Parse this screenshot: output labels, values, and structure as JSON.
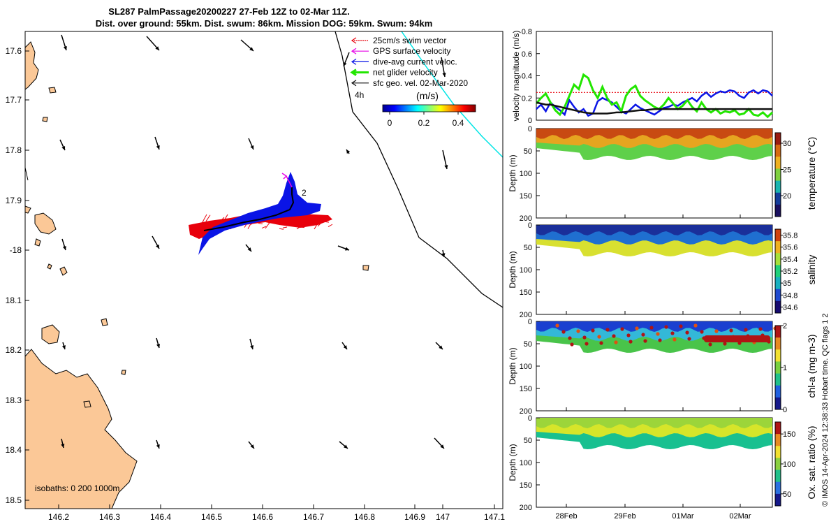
{
  "title": {
    "line1": "SL287 PalmPassage20200227 27-Feb 12Z to 02-Mar 11Z.",
    "line2": "Dist. over ground: 55km. Dist. swum: 86km. Mission DOG: 59km. Swum: 94km"
  },
  "colors": {
    "land": "#fbc897",
    "swim": "#e8000b",
    "gps": "#e600e6",
    "diveavg": "#0a14e6",
    "net": "#22e600",
    "sfcgeo": "#111111",
    "cyan": "#00e5e5"
  },
  "map": {
    "lon_ticks": [
      "146.2",
      "146.3",
      "146.4",
      "146.5",
      "146.6",
      "146.7",
      "146.8",
      "146.9",
      "147",
      "147.1"
    ],
    "lat_ticks": [
      "17.6",
      "17.7",
      "17.8",
      "17.9",
      "-18",
      "18.1",
      "18.2",
      "18.3",
      "18.4",
      "18.5"
    ],
    "lon_range": [
      146.11,
      147.12
    ],
    "lat_range": [
      17.57,
      18.52
    ],
    "isobaths_label": "isobaths: 0   200  1000m",
    "marker_2": "2",
    "marker_4h": "4h",
    "legend": [
      {
        "label": "25cm/s swim vector",
        "color": "#e8000b"
      },
      {
        "label": "GPS surface velocity",
        "color": "#e600e6"
      },
      {
        "label": "dive-avg current veloc.",
        "color": "#0a14e6"
      },
      {
        "label": "net glider velocity",
        "color": "#22e600"
      },
      {
        "label": "sfc geo. vel. 02-Mar-2020",
        "color": "#111111"
      }
    ],
    "colorbar": {
      "unit": "(m/s)",
      "ticks": [
        "0",
        "0.2",
        "0.4"
      ]
    }
  },
  "chart_data": [
    {
      "type": "line",
      "ylabel": "velocity magnitude (m/s)",
      "ylim": [
        0,
        0.8
      ],
      "yticks": [
        "0",
        "0.2",
        "0.4",
        "0.6",
        "0.8"
      ],
      "x": [
        0,
        0.02,
        0.04,
        0.06,
        0.08,
        0.1,
        0.12,
        0.14,
        0.16,
        0.18,
        0.2,
        0.22,
        0.24,
        0.26,
        0.28,
        0.3,
        0.32,
        0.34,
        0.36,
        0.38,
        0.4,
        0.42,
        0.44,
        0.46,
        0.48,
        0.5,
        0.52,
        0.54,
        0.56,
        0.58,
        0.6,
        0.62,
        0.64,
        0.66,
        0.68,
        0.7,
        0.72,
        0.74,
        0.76,
        0.78,
        0.8,
        0.82,
        0.84,
        0.86,
        0.88,
        0.9,
        0.92,
        0.94,
        0.96,
        0.98,
        1.0
      ],
      "series": [
        {
          "name": "swim",
          "color": "#e8000b",
          "values": [
            0.25,
            0.25,
            0.25,
            0.25,
            0.25,
            0.25,
            0.25,
            0.25,
            0.25,
            0.25,
            0.25,
            0.25,
            0.25,
            0.25,
            0.25,
            0.25,
            0.25,
            0.25,
            0.25,
            0.25,
            0.25,
            0.25,
            0.25,
            0.25,
            0.25,
            0.25,
            0.25,
            0.25,
            0.25,
            0.25,
            0.25,
            0.25,
            0.25,
            0.25,
            0.25,
            0.25,
            0.25,
            0.25,
            0.25,
            0.25,
            0.25,
            0.25,
            0.25,
            0.25,
            0.25,
            0.25,
            0.25,
            0.25,
            0.25,
            0.25,
            0.25
          ]
        },
        {
          "name": "dive-avg",
          "color": "#0a14e6",
          "values": [
            0.1,
            0.14,
            0.08,
            0.16,
            0.12,
            0.09,
            0.05,
            0.18,
            0.12,
            0.07,
            0.1,
            0.04,
            0.06,
            0.17,
            0.2,
            0.18,
            0.16,
            0.12,
            0.08,
            0.06,
            0.1,
            0.14,
            0.11,
            0.09,
            0.07,
            0.05,
            0.08,
            0.11,
            0.12,
            0.14,
            0.13,
            0.16,
            0.18,
            0.2,
            0.17,
            0.22,
            0.25,
            0.21,
            0.24,
            0.26,
            0.25,
            0.27,
            0.26,
            0.22,
            0.2,
            0.25,
            0.27,
            0.24,
            0.27,
            0.26,
            0.22
          ]
        },
        {
          "name": "net",
          "color": "#22e600",
          "values": [
            0.15,
            0.2,
            0.24,
            0.16,
            0.09,
            0.05,
            0.12,
            0.22,
            0.32,
            0.28,
            0.41,
            0.38,
            0.27,
            0.2,
            0.3,
            0.2,
            0.14,
            0.16,
            0.08,
            0.22,
            0.28,
            0.31,
            0.22,
            0.18,
            0.15,
            0.12,
            0.1,
            0.14,
            0.2,
            0.15,
            0.1,
            0.13,
            0.18,
            0.12,
            0.08,
            0.16,
            0.1,
            0.07,
            0.1,
            0.06,
            0.08,
            0.07,
            0.09,
            0.05,
            0.06,
            0.1,
            0.05,
            0.04,
            0.07,
            0.03,
            0.07
          ]
        },
        {
          "name": "sfc",
          "color": "#111111",
          "values": [
            0.16,
            0.15,
            0.14,
            0.14,
            0.13,
            0.12,
            0.11,
            0.1,
            0.09,
            0.08,
            0.07,
            0.065,
            0.06,
            0.06,
            0.06,
            0.06,
            0.065,
            0.07,
            0.07,
            0.075,
            0.08,
            0.085,
            0.09,
            0.09,
            0.095,
            0.1,
            0.1,
            0.1,
            0.1,
            0.1,
            0.1,
            0.1,
            0.1,
            0.1,
            0.1,
            0.1,
            0.1,
            0.1,
            0.1,
            0.1,
            0.1,
            0.1,
            0.1,
            0.1,
            0.1,
            0.1,
            0.1,
            0.1,
            0.1,
            0.1,
            0.1
          ]
        }
      ]
    },
    {
      "type": "heatmap",
      "ylabel": "Depth (m)",
      "cblabel": "temperature (°C)",
      "cbticks": [
        "20",
        "25",
        "30"
      ],
      "clim": [
        16,
        32
      ],
      "yticks": [
        "0",
        "50",
        "100",
        "150",
        "200"
      ],
      "ylim": [
        0,
        200
      ],
      "xticks": [
        "28Feb",
        "29Feb",
        "01Mar",
        "02Mar"
      ],
      "description_values": {
        "surface": 29.5,
        "bottom": 24.5
      }
    },
    {
      "type": "heatmap",
      "ylabel": "Depth (m)",
      "cblabel": "salinity",
      "cbticks": [
        "34.6",
        "34.8",
        "35",
        "35.2",
        "35.4",
        "35.6",
        "35.8"
      ],
      "clim": [
        34.5,
        35.9
      ],
      "yticks": [
        "0",
        "50",
        "100",
        "150",
        "200"
      ],
      "ylim": [
        0,
        200
      ]
    },
    {
      "type": "heatmap",
      "ylabel": "Depth (m)",
      "cblabel": "chl-a (mg m-3)",
      "cbticks": [
        "0",
        "1",
        "2"
      ],
      "clim": [
        0,
        2
      ],
      "yticks": [
        "0",
        "50",
        "100",
        "150",
        "200"
      ],
      "ylim": [
        0,
        200
      ]
    },
    {
      "type": "heatmap",
      "ylabel": "Depth (m)",
      "cblabel": "Ox. sat. ratio (%)",
      "cbticks": [
        "50",
        "100",
        "150"
      ],
      "clim": [
        30,
        170
      ],
      "yticks": [
        "0",
        "50",
        "100",
        "150",
        "200"
      ],
      "ylim": [
        0,
        200
      ]
    }
  ],
  "dates": [
    "28Feb",
    "29Feb",
    "01Mar",
    "02Mar"
  ],
  "footer": "© IMOS 14-Apr-2024 12:38:33 Hobart time. QC flags 1  2"
}
